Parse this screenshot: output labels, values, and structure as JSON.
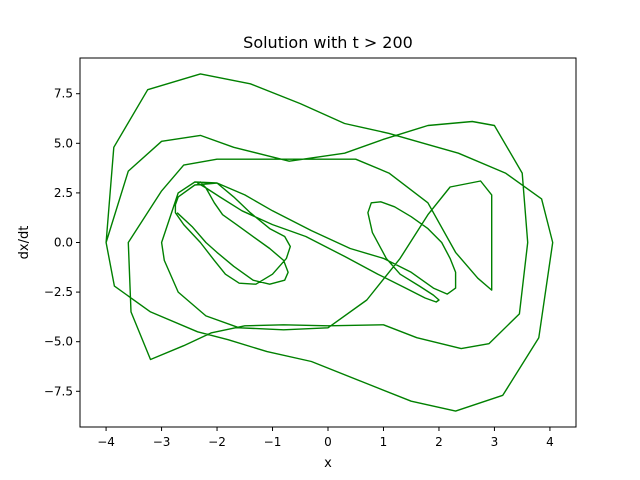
{
  "chart_data": {
    "type": "line",
    "title": "Solution with t > 200",
    "xlabel": "x",
    "ylabel": "dx/dt",
    "xlim": [
      -4.47,
      4.47
    ],
    "ylim": [
      -9.3,
      9.3
    ],
    "xticks": [
      -4,
      -3,
      -2,
      -1,
      0,
      1,
      2,
      3,
      4
    ],
    "xtick_labels": [
      "−4",
      "−3",
      "−2",
      "−1",
      "0",
      "1",
      "2",
      "3",
      "4"
    ],
    "yticks": [
      -7.5,
      -5.0,
      -2.5,
      0.0,
      2.5,
      5.0,
      7.5
    ],
    "ytick_labels": [
      "−7.5",
      "−5.0",
      "−2.5",
      "0.0",
      "2.5",
      "5.0",
      "7.5"
    ],
    "grid": false,
    "series": [
      {
        "color": "#008000",
        "x": [
          -4.0,
          -3.86,
          -3.25,
          -2.3,
          -1.4,
          -0.5,
          0.3,
          1.1,
          1.85,
          2.35,
          3.2,
          3.85,
          4.05,
          3.8,
          3.15,
          2.3,
          1.5,
          0.6,
          -0.3,
          -1.1,
          -1.8,
          -2.35,
          -3.2,
          -3.85,
          -4.0,
          -3.6,
          -3.0,
          -2.3,
          -1.7,
          -0.7,
          0.3,
          1.0,
          1.8,
          2.6,
          3.0,
          3.5,
          3.6,
          3.45,
          2.9,
          2.4,
          1.6,
          1.0,
          0.0,
          -0.8,
          -1.5,
          -2.1,
          -2.6,
          -3.2,
          -3.55,
          -3.6,
          -3.0,
          -2.6,
          -2.0,
          -1.3,
          -0.4,
          0.5,
          1.1,
          1.8,
          2.3,
          2.7,
          2.95,
          2.95,
          2.75,
          2.2,
          1.8,
          1.3,
          0.7,
          0.0,
          -0.8,
          -1.6,
          -2.2,
          -2.7,
          -2.95,
          -3.0,
          -2.7,
          -2.4,
          -2.0,
          -1.7,
          -1.4,
          -1.05,
          -0.78,
          -0.68,
          -0.75,
          -1.0,
          -1.3,
          -1.6,
          -1.85,
          -2.05,
          -2.3,
          -2.6,
          -2.75,
          -2.75,
          -2.7,
          -2.4,
          -2.0,
          -1.5,
          -1.0,
          -0.3,
          0.4,
          1.0,
          1.5,
          1.9,
          2.15,
          2.3,
          2.3,
          2.2,
          2.05,
          1.8,
          1.5,
          1.2,
          0.95,
          0.78,
          0.72,
          0.8,
          1.05,
          1.3,
          1.65,
          1.9,
          2.0,
          1.95,
          1.75,
          1.4,
          0.9,
          0.3,
          -0.4,
          -1.0,
          -1.55,
          -1.95,
          -2.2,
          -2.35,
          -2.3,
          -2.2,
          -2.05,
          -1.9,
          -1.65,
          -1.4,
          -1.05,
          -0.8,
          -0.72,
          -0.78,
          -1.05,
          -1.35,
          -1.7,
          -2.0,
          -2.2,
          -2.45,
          -2.72
        ],
        "y": [
          0.0,
          4.8,
          7.7,
          8.5,
          8.0,
          7.0,
          6.0,
          5.5,
          4.9,
          4.5,
          3.5,
          2.2,
          0.0,
          -4.8,
          -7.7,
          -8.5,
          -8.0,
          -7.0,
          -6.0,
          -5.5,
          -4.9,
          -4.5,
          -3.5,
          -2.2,
          0.0,
          3.6,
          5.1,
          5.4,
          4.8,
          4.1,
          4.5,
          5.2,
          5.9,
          6.1,
          5.9,
          3.5,
          0.0,
          -3.6,
          -5.1,
          -5.35,
          -4.8,
          -4.15,
          -4.2,
          -4.15,
          -4.2,
          -4.55,
          -5.2,
          -5.9,
          -3.5,
          0.0,
          2.6,
          3.9,
          4.2,
          4.2,
          4.2,
          4.2,
          3.5,
          2.0,
          -0.5,
          -1.8,
          -2.4,
          2.4,
          3.1,
          2.8,
          1.4,
          -0.8,
          -2.9,
          -4.3,
          -4.4,
          -4.3,
          -3.7,
          -2.5,
          -0.9,
          0.0,
          2.5,
          3.05,
          3.0,
          2.3,
          1.5,
          0.7,
          0.3,
          -0.2,
          -0.8,
          -1.6,
          -2.1,
          -2.05,
          -1.6,
          -0.9,
          0.0,
          0.9,
          1.5,
          1.9,
          2.3,
          2.9,
          3.0,
          2.4,
          1.6,
          0.6,
          -0.3,
          -0.8,
          -1.5,
          -2.3,
          -2.6,
          -2.3,
          -1.5,
          -0.8,
          0.0,
          0.7,
          1.3,
          1.8,
          2.05,
          2.0,
          1.5,
          0.5,
          -0.8,
          -1.6,
          -2.2,
          -2.65,
          -2.9,
          -3.0,
          -2.8,
          -2.3,
          -1.6,
          -0.7,
          0.3,
          0.9,
          1.6,
          2.3,
          2.75,
          3.0,
          3.05,
          2.75,
          2.0,
          1.4,
          0.9,
          0.4,
          -0.3,
          -0.9,
          -1.5,
          -1.9,
          -2.1,
          -1.9,
          -1.2,
          -0.5,
          0.0,
          0.8,
          1.5
        ]
      }
    ]
  }
}
